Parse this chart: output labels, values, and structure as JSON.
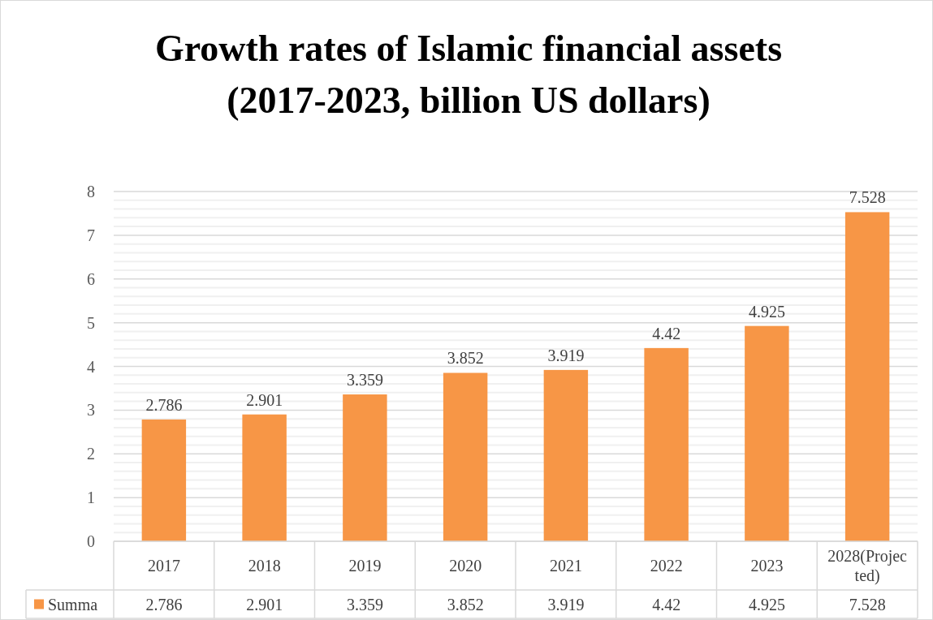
{
  "chart_data": {
    "type": "bar",
    "title": "Growth rates of Islamic financial assets (2017-2023, billion US dollars)",
    "categories": [
      "2017",
      "2018",
      "2019",
      "2020",
      "2021",
      "2022",
      "2023",
      "2028(Projected)"
    ],
    "series": [
      {
        "name": "Summa",
        "color": "#f79646",
        "values": [
          2.786,
          2.901,
          3.359,
          3.852,
          3.919,
          4.42,
          4.925,
          7.528
        ]
      }
    ],
    "annotations": [
      "2.786",
      "2.901",
      "3.359",
      "3.852",
      "3.919",
      "4.42",
      "4.925",
      "7.528"
    ],
    "ylim": [
      0,
      8
    ],
    "yticks": [
      0,
      {
        "value": 0.2,
        "label": null
      },
      {
        "value": 0.4,
        "label": null
      },
      {
        "value": 0.6,
        "label": null
      },
      {
        "value": 0.8,
        "label": null
      },
      1,
      {
        "value": 1.2,
        "label": null
      },
      {
        "value": 1.4,
        "label": null
      },
      {
        "value": 1.6,
        "label": null
      },
      {
        "value": 1.8,
        "label": null
      },
      2,
      {
        "value": 2.2,
        "label": null
      },
      {
        "value": 2.4,
        "label": null
      },
      {
        "value": 2.6,
        "label": null
      },
      {
        "value": 2.8,
        "label": null
      },
      3,
      {
        "value": 3.2,
        "label": null
      },
      {
        "value": 3.4,
        "label": null
      },
      {
        "value": 3.6,
        "label": null
      },
      {
        "value": 3.8,
        "label": null
      },
      4,
      {
        "value": 4.2,
        "label": null
      },
      {
        "value": 4.4,
        "label": null
      },
      {
        "value": 4.6,
        "label": null
      },
      {
        "value": 4.8,
        "label": null
      },
      5,
      {
        "value": 5.2,
        "label": null
      },
      {
        "value": 5.4,
        "label": null
      },
      {
        "value": 5.6,
        "label": null
      },
      {
        "value": 5.8,
        "label": null
      },
      6,
      {
        "value": 6.2,
        "label": null
      },
      {
        "value": 6.4,
        "label": null
      },
      {
        "value": 6.6,
        "label": null
      },
      {
        "value": 6.8,
        "label": null
      },
      7,
      {
        "value": 7.2,
        "label": null
      },
      {
        "value": 7.4,
        "label": null
      },
      {
        "value": 7.6,
        "label": null
      },
      {
        "value": 7.8,
        "label": null
      },
      8
    ],
    "grid": "y",
    "data_labels": true,
    "legend": "bottom"
  }
}
